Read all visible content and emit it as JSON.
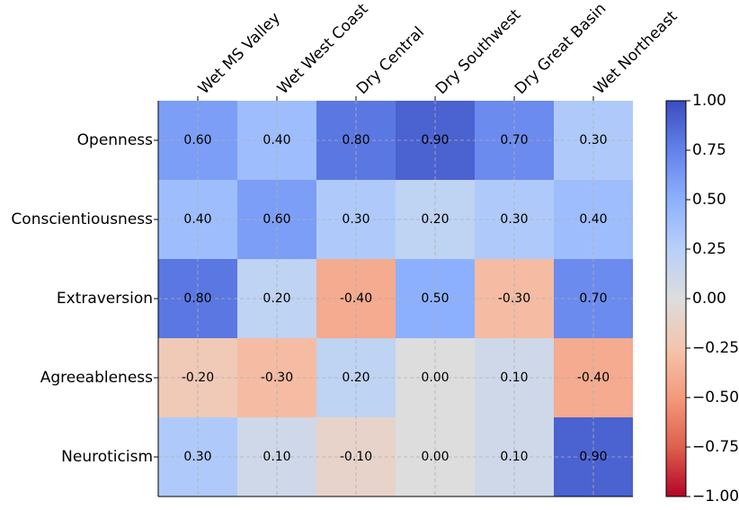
{
  "chart_data": {
    "type": "heatmap",
    "x_categories": [
      "Wet MS Valley",
      "Wet West Coast",
      "Dry Central",
      "Dry Southwest",
      "Dry Great Basin",
      "Wet Northeast"
    ],
    "y_categories": [
      "Openness",
      "Conscientiousness",
      "Extraversion",
      "Agreeableness",
      "Neuroticism"
    ],
    "values": [
      [
        0.6,
        0.4,
        0.8,
        0.9,
        0.7,
        0.3
      ],
      [
        0.4,
        0.6,
        0.3,
        0.2,
        0.3,
        0.4
      ],
      [
        0.8,
        0.2,
        -0.4,
        0.5,
        -0.3,
        0.7
      ],
      [
        -0.2,
        -0.3,
        0.2,
        0.0,
        0.1,
        -0.4
      ],
      [
        0.3,
        0.1,
        -0.1,
        0.0,
        0.1,
        0.9
      ]
    ],
    "value_labels": [
      [
        "0.60",
        "0.40",
        "0.80",
        "0.90",
        "0.70",
        "0.30"
      ],
      [
        "0.40",
        "0.60",
        "0.30",
        "0.20",
        "0.30",
        "0.40"
      ],
      [
        "0.80",
        "0.20",
        "-0.40",
        "0.50",
        "-0.30",
        "0.70"
      ],
      [
        "-0.20",
        "-0.30",
        "0.20",
        "0.00",
        "0.10",
        "-0.40"
      ],
      [
        "0.30",
        "0.10",
        "-0.10",
        "0.00",
        "0.10",
        "0.90"
      ]
    ],
    "clim": [
      -1,
      1
    ],
    "colorscale": [
      "#b40426",
      "#de604d",
      "#f49a7b",
      "#f5c4ad",
      "#dddddd",
      "#b8d0f9",
      "#8db0fe",
      "#6282ea",
      "#3b4cc0"
    ],
    "cticks": [
      {
        "value": -1,
        "label": "−1.00"
      },
      {
        "value": -0.75,
        "label": "−0.75"
      },
      {
        "value": -0.5,
        "label": "−0.50"
      },
      {
        "value": -0.25,
        "label": "−0.25"
      },
      {
        "value": 0,
        "label": "0.00"
      },
      {
        "value": 0.25,
        "label": "0.25"
      },
      {
        "value": 0.5,
        "label": "0.50"
      },
      {
        "value": 0.75,
        "label": "0.75"
      },
      {
        "value": 1,
        "label": "1.00"
      }
    ],
    "grid": true
  }
}
